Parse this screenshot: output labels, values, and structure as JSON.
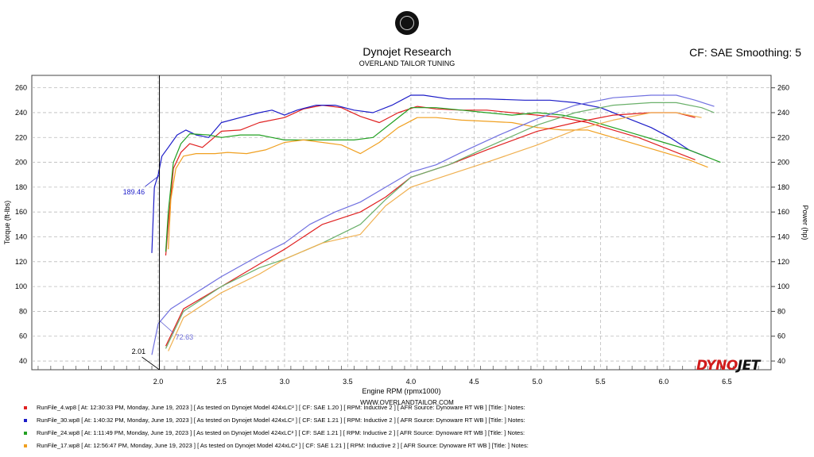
{
  "header": {
    "title": "Dynojet Research",
    "subtitle": "OVERLAND TAILOR TUNING",
    "cf_smoothing": "CF: SAE Smoothing: 5",
    "website": "WWW.OVERLANDTAILOR.COM",
    "brand_left": "DYNO",
    "brand_right": "JET"
  },
  "runs": [
    {
      "file": "RunFile_4.wp8",
      "details": "[ At: 12:30:33 PM, Monday, June 19, 2023 ] [ As tested on Dynojet Model 424xLC² ] [ CF: SAE 1.20 ] [ RPM: Inductive 2 ] [ AFR Source: Dynoware RT WB ] [Title: ]   Notes:",
      "color": "#e02020"
    },
    {
      "file": "RunFile_30.wp8",
      "details": "[ At: 1:40:32 PM, Monday, June 19, 2023 ] [ As tested on Dynojet Model 424xLC² ] [ CF: SAE 1.21 ] [ RPM: Inductive 2 ] [ AFR Source: Dynoware RT WB ] [Title: ]   Notes:",
      "color": "#1c1cc8"
    },
    {
      "file": "RunFile_24.wp8",
      "details": "[ At: 1:11:49 PM, Monday, June 19, 2023 ] [ As tested on Dynojet Model 424xLC² ] [ CF: SAE 1.21 ] [ RPM: Inductive 2 ] [ AFR Source: Dynoware RT WB ] [Title: ]   Notes:",
      "color": "#22a022"
    },
    {
      "file": "RunFile_17.wp8",
      "details": "[ At: 12:56:47 PM, Monday, June 19, 2023 ] [ As tested on Dynojet Model 424xLC² ] [ CF: SAE 1.21 ] [ RPM: Inductive 2 ] [ AFR Source: Dynoware RT WB ] [Title: ]   Notes:",
      "color": "#f0a020"
    }
  ],
  "chart_data": {
    "type": "line",
    "xlabel": "Engine RPM (rpmx1000)",
    "ylabel_left": "Torque (ft-lbs)",
    "ylabel_right": "Power (hp)",
    "xlim": [
      1.0,
      6.85
    ],
    "ylim": [
      33,
      270
    ],
    "xticks": [
      "2.0",
      "2.5",
      "3.0",
      "3.5",
      "4.0",
      "4.5",
      "5.0",
      "5.5",
      "6.0",
      "6.5"
    ],
    "yticks": [
      "40",
      "60",
      "80",
      "100",
      "120",
      "140",
      "160",
      "180",
      "200",
      "220",
      "240",
      "260"
    ],
    "grid": true,
    "cursor": {
      "x": 2.01,
      "label": "2.01",
      "torque_readout": "189.46",
      "power_readout": "72.63",
      "readout_color": "#1c1cc8"
    },
    "series": [
      {
        "name": "RunFile_4 Torque",
        "color": "#e02020",
        "x": [
          2.06,
          2.08,
          2.12,
          2.18,
          2.25,
          2.35,
          2.5,
          2.65,
          2.8,
          3.0,
          3.15,
          3.3,
          3.45,
          3.6,
          3.75,
          3.9,
          4.05,
          4.2,
          4.4,
          4.6,
          4.8,
          5.0,
          5.2,
          5.4,
          5.6,
          5.8,
          6.0,
          6.15,
          6.25
        ],
        "y": [
          125,
          150,
          195,
          208,
          215,
          212,
          225,
          226,
          232,
          236,
          243,
          246,
          244,
          237,
          232,
          240,
          245,
          243,
          242,
          242,
          240,
          238,
          236,
          232,
          226,
          220,
          212,
          206,
          202
        ]
      },
      {
        "name": "RunFile_30 Torque",
        "color": "#1c1cc8",
        "x": [
          1.95,
          1.97,
          2.0,
          2.03,
          2.08,
          2.15,
          2.22,
          2.3,
          2.4,
          2.5,
          2.65,
          2.8,
          2.9,
          3.0,
          3.1,
          3.25,
          3.4,
          3.55,
          3.7,
          3.85,
          4.0,
          4.1,
          4.3,
          4.6,
          4.9,
          5.1,
          5.3,
          5.5,
          5.7,
          5.9,
          6.05,
          6.2,
          6.35
        ],
        "y": [
          127,
          180,
          190,
          205,
          212,
          222,
          226,
          222,
          220,
          232,
          236,
          240,
          242,
          238,
          242,
          246,
          246,
          242,
          240,
          246,
          254,
          254,
          251,
          251,
          250,
          250,
          248,
          244,
          236,
          228,
          220,
          210,
          204
        ]
      },
      {
        "name": "RunFile_24 Torque",
        "color": "#22a022",
        "x": [
          2.06,
          2.08,
          2.12,
          2.18,
          2.25,
          2.4,
          2.5,
          2.65,
          2.8,
          2.9,
          3.0,
          3.2,
          3.4,
          3.55,
          3.7,
          3.85,
          4.0,
          4.2,
          4.4,
          4.6,
          4.8,
          5.0,
          5.2,
          5.4,
          5.6,
          5.8,
          6.0,
          6.2,
          6.35,
          6.45
        ],
        "y": [
          128,
          160,
          200,
          215,
          223,
          222,
          220,
          222,
          222,
          220,
          218,
          218,
          218,
          218,
          220,
          232,
          244,
          244,
          242,
          240,
          238,
          240,
          238,
          234,
          228,
          222,
          216,
          210,
          204,
          200
        ]
      },
      {
        "name": "RunFile_17 Torque",
        "color": "#f0a020",
        "x": [
          2.08,
          2.1,
          2.14,
          2.2,
          2.3,
          2.45,
          2.55,
          2.7,
          2.85,
          3.0,
          3.15,
          3.3,
          3.45,
          3.6,
          3.75,
          3.9,
          4.05,
          4.2,
          4.4,
          4.6,
          4.8,
          5.0,
          5.2,
          5.4,
          5.6,
          5.8,
          6.0,
          6.2,
          6.35
        ],
        "y": [
          130,
          170,
          195,
          205,
          207,
          207,
          208,
          207,
          210,
          216,
          218,
          216,
          214,
          207,
          216,
          228,
          236,
          236,
          234,
          233,
          232,
          228,
          226,
          226,
          220,
          214,
          208,
          202,
          196
        ]
      },
      {
        "name": "RunFile_4 Power",
        "color": "#e02020",
        "x": [
          2.06,
          2.2,
          2.5,
          2.8,
          3.0,
          3.3,
          3.6,
          3.8,
          4.0,
          4.3,
          4.6,
          5.0,
          5.3,
          5.6,
          5.9,
          6.1,
          6.25
        ],
        "y": [
          52,
          82,
          100,
          118,
          130,
          150,
          160,
          172,
          188,
          198,
          210,
          225,
          232,
          238,
          240,
          240,
          236
        ]
      },
      {
        "name": "RunFile_30 Power",
        "color": "#7070e0",
        "x": [
          1.95,
          2.0,
          2.1,
          2.3,
          2.5,
          2.8,
          3.0,
          3.2,
          3.4,
          3.6,
          3.8,
          4.0,
          4.2,
          4.4,
          4.7,
          5.0,
          5.3,
          5.6,
          5.9,
          6.1,
          6.25,
          6.4
        ],
        "y": [
          45,
          70,
          82,
          95,
          108,
          125,
          135,
          150,
          160,
          168,
          180,
          192,
          198,
          208,
          222,
          235,
          246,
          252,
          254,
          254,
          250,
          245
        ]
      },
      {
        "name": "RunFile_24 Power",
        "color": "#6ab06a",
        "x": [
          2.06,
          2.2,
          2.5,
          2.8,
          3.0,
          3.3,
          3.6,
          3.8,
          4.0,
          4.3,
          4.6,
          5.0,
          5.3,
          5.6,
          5.9,
          6.1,
          6.3,
          6.4
        ],
        "y": [
          50,
          80,
          100,
          115,
          122,
          135,
          150,
          170,
          188,
          198,
          212,
          230,
          240,
          246,
          248,
          248,
          244,
          240
        ]
      },
      {
        "name": "RunFile_17 Power",
        "color": "#f0b050",
        "x": [
          2.08,
          2.2,
          2.5,
          2.8,
          3.0,
          3.3,
          3.6,
          3.8,
          4.0,
          4.3,
          4.6,
          5.0,
          5.3,
          5.6,
          5.9,
          6.1,
          6.3
        ],
        "y": [
          48,
          75,
          95,
          110,
          122,
          135,
          142,
          165,
          180,
          190,
          200,
          214,
          226,
          234,
          240,
          240,
          236
        ]
      }
    ]
  }
}
